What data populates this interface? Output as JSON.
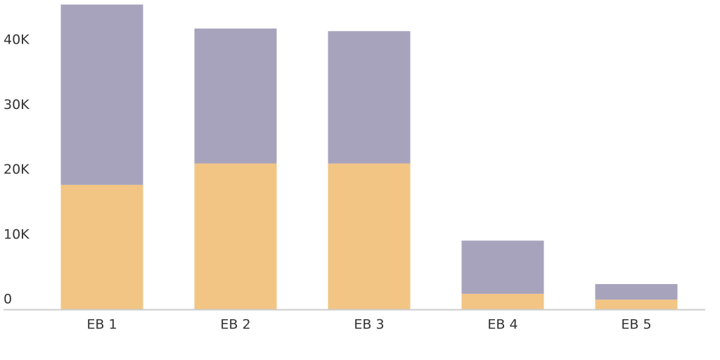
{
  "chart_data": {
    "type": "stacked_bar",
    "categories": [
      "EB 1",
      "EB 2",
      "EB 3",
      "EB 4",
      "EB 5"
    ],
    "series": [
      {
        "color": "#f2c584",
        "values": [
          19200,
          22500,
          22500,
          2400,
          1500
        ]
      },
      {
        "color": "#a8a3bd",
        "values": [
          27800,
          20800,
          20400,
          8200,
          2400
        ]
      }
    ],
    "ylim": [
      0,
      47700
    ],
    "yticks": [
      0,
      {
        "value": 10000,
        "label": "10K"
      },
      {
        "value": 20000,
        "label": "20K"
      },
      {
        "value": 30000,
        "label": "30K"
      },
      {
        "value": 40000,
        "label": "40K"
      }
    ]
  }
}
